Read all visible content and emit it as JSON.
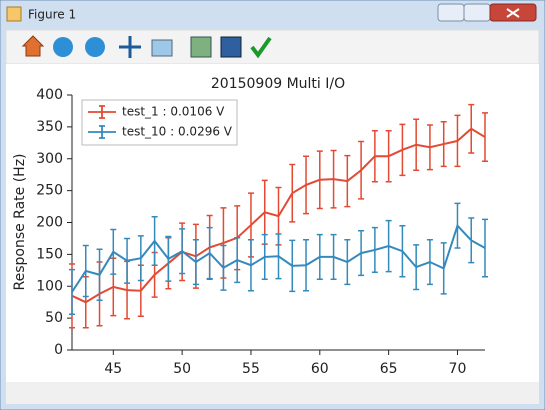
{
  "window": {
    "title": "Figure 1"
  },
  "chart_data": {
    "type": "errorbar_line",
    "title": "20150909 Multi I/O",
    "ylabel": "Response Rate (Hz)",
    "x": [
      42,
      43,
      44,
      45,
      46,
      47,
      48,
      49,
      50,
      51,
      52,
      53,
      54,
      55,
      56,
      57,
      58,
      59,
      60,
      61,
      62,
      63,
      64,
      65,
      66,
      67,
      68,
      69,
      70,
      71,
      72
    ],
    "series": [
      {
        "name": "test_1 : 0.0106 V",
        "color": "#e24a33",
        "values": [
          85,
          75,
          88,
          99,
          94,
          93,
          118,
          136,
          154,
          147,
          161,
          168,
          176,
          196,
          216,
          210,
          246,
          259,
          267,
          268,
          265,
          282,
          304,
          304,
          314,
          322,
          318,
          323,
          328,
          347,
          334
        ],
        "errors": [
          50,
          40,
          50,
          45,
          45,
          40,
          35,
          40,
          45,
          50,
          50,
          55,
          50,
          50,
          50,
          45,
          45,
          45,
          45,
          45,
          40,
          45,
          40,
          40,
          40,
          40,
          35,
          35,
          40,
          38,
          38
        ]
      },
      {
        "name": "test_10 : 0.0296 V",
        "color": "#348abd",
        "values": [
          91,
          124,
          118,
          154,
          140,
          144,
          171,
          143,
          155,
          138,
          152,
          129,
          141,
          133,
          146,
          147,
          132,
          133,
          146,
          146,
          138,
          152,
          157,
          163,
          155,
          130,
          138,
          128,
          195,
          172,
          160
        ],
        "errors": [
          35,
          40,
          40,
          35,
          35,
          35,
          38,
          35,
          35,
          35,
          40,
          35,
          35,
          40,
          35,
          35,
          40,
          40,
          35,
          35,
          35,
          35,
          35,
          40,
          40,
          35,
          35,
          40,
          35,
          35,
          45
        ]
      }
    ],
    "xlim": [
      42,
      72
    ],
    "ylim": [
      0,
      400
    ],
    "xticks": [
      45,
      50,
      55,
      60,
      65,
      70
    ],
    "yticks": [
      0,
      50,
      100,
      150,
      200,
      250,
      300,
      350,
      400
    ],
    "legend": "upper left"
  }
}
